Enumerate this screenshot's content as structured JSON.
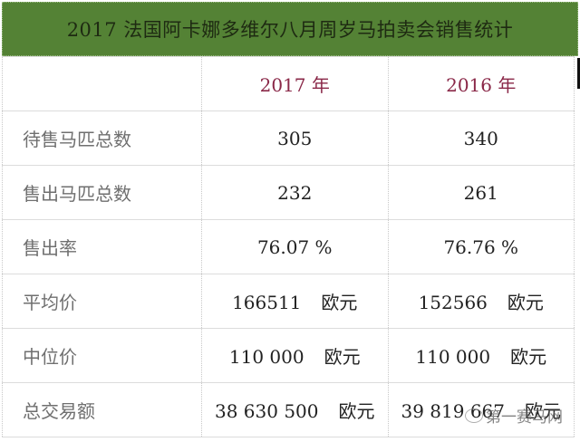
{
  "title": "2017 法国阿卡娜多维尔八月周岁马拍卖会销售统计",
  "columns": [
    "",
    "2017 年",
    "2016 年"
  ],
  "rows": [
    {
      "label": "待售马匹总数",
      "v2017": "305",
      "v2016": "340",
      "u2017": "",
      "u2016": ""
    },
    {
      "label": "售出马匹总数",
      "v2017": "232",
      "v2016": "261",
      "u2017": "",
      "u2016": ""
    },
    {
      "label": "售出率",
      "v2017": "76.07 %",
      "v2016": "76.76 %",
      "u2017": "",
      "u2016": ""
    },
    {
      "label": "平均价",
      "v2017": "166511",
      "v2016": "152566",
      "u2017": "欧元",
      "u2016": "欧元"
    },
    {
      "label": "中位价",
      "v2017": "110 000",
      "v2016": "110 000",
      "u2017": "欧元",
      "u2016": "欧元"
    },
    {
      "label": "总交易额",
      "v2017": "38 630 500",
      "v2016": "39 819 667",
      "u2017": "欧元",
      "u2016": "欧元"
    }
  ],
  "watermark": {
    "text": "第一赛马网",
    "icon": "wechat-icon"
  },
  "colors": {
    "header_bg": "#548235",
    "year_text": "#8a2848",
    "label_text": "#6f6f6f"
  }
}
